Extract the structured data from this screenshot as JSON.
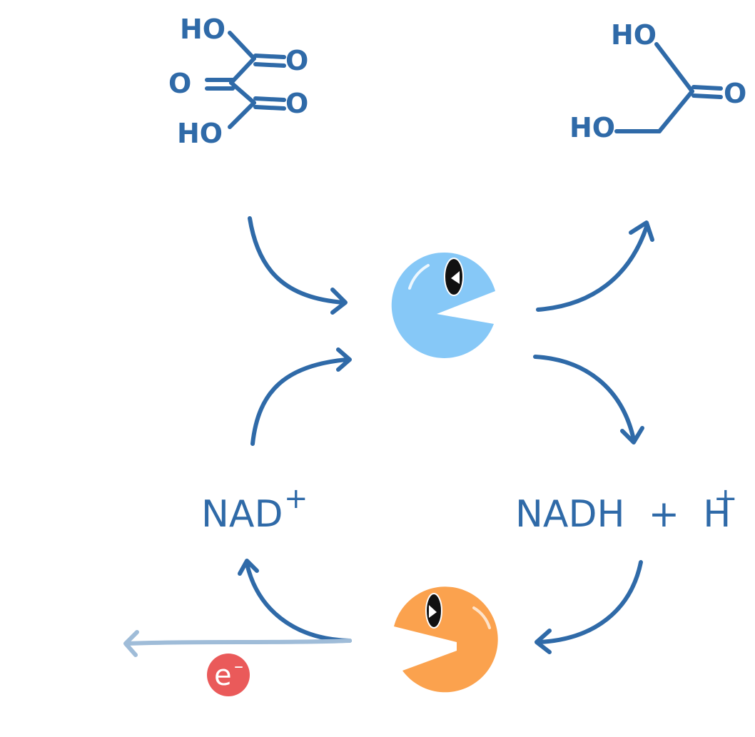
{
  "colors": {
    "ink": "#2f6aa8",
    "enzyme_blue": "#86c8f7",
    "enzyme_orange": "#fba24e",
    "electron_badge": "#ea5a5a",
    "electron_arrow": "#9fbcd8"
  },
  "substrate": {
    "atoms": {
      "ho_top": "HO",
      "o_right_top": "O",
      "o_left": "O",
      "o_right_bottom": "O",
      "ho_bottom": "HO"
    }
  },
  "product": {
    "atoms": {
      "ho_top": "HO",
      "o_right": "O",
      "ho_bottom": "HO"
    }
  },
  "labels": {
    "nad_plus": "NAD",
    "nad_plus_sup": "+",
    "nadh_h_plus": "NADH  +  H",
    "nadh_h_plus_sup": "+"
  },
  "electron": {
    "symbol": "e",
    "charge": "–"
  },
  "icons": [
    "blue-enzyme-icon",
    "orange-enzyme-icon",
    "electron-icon"
  ]
}
